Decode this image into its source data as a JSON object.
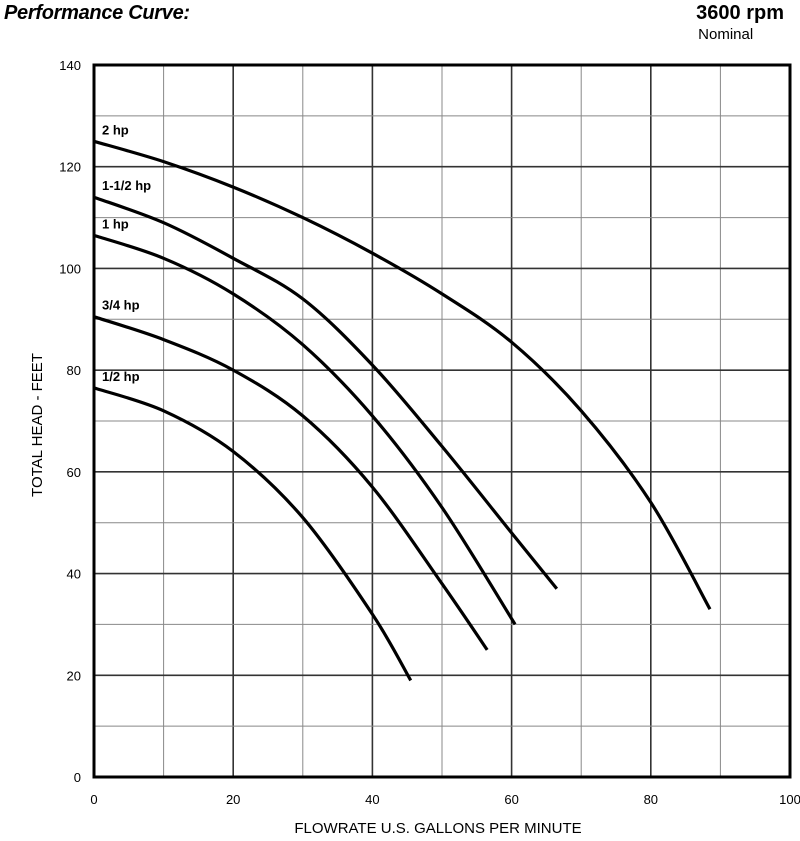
{
  "header": {
    "title": "Performance Curve:",
    "rpm": "3600 rpm",
    "rpm_note": "Nominal"
  },
  "chart_data": {
    "type": "line",
    "title": "Performance Curve:",
    "xlabel": "FLOWRATE U.S. GALLONS PER MINUTE",
    "ylabel": "TOTAL HEAD - FEET",
    "xlim": [
      0,
      100
    ],
    "ylim": [
      0,
      140
    ],
    "xticks": [
      0,
      20,
      40,
      60,
      80,
      100
    ],
    "yticks": [
      0,
      20,
      40,
      60,
      80,
      100,
      120,
      140
    ],
    "x_minor_step": 10,
    "y_minor_step": 10,
    "grid": true,
    "series": [
      {
        "name": "2 hp",
        "x": [
          0,
          10,
          20,
          30,
          40,
          50,
          60,
          70,
          80,
          88.5
        ],
        "y": [
          125,
          121,
          116,
          110,
          103,
          95,
          85.5,
          72,
          54,
          33
        ]
      },
      {
        "name": "1-1/2 hp",
        "x": [
          0,
          10,
          20,
          30,
          40,
          50,
          60,
          66.5
        ],
        "y": [
          114,
          109,
          102,
          94,
          81,
          65,
          48,
          37
        ]
      },
      {
        "name": "1 hp",
        "x": [
          0,
          10,
          20,
          30,
          40,
          50,
          60.5
        ],
        "y": [
          106.5,
          102,
          95,
          85,
          71,
          53,
          30
        ]
      },
      {
        "name": "3/4 hp",
        "x": [
          0,
          10,
          20,
          30,
          40,
          50,
          56.5
        ],
        "y": [
          90.5,
          86,
          80,
          71,
          57,
          38,
          25
        ]
      },
      {
        "name": "1/2 hp",
        "x": [
          0,
          10,
          20,
          30,
          40,
          45.5
        ],
        "y": [
          76.5,
          72,
          64,
          51,
          32,
          19
        ]
      }
    ]
  }
}
